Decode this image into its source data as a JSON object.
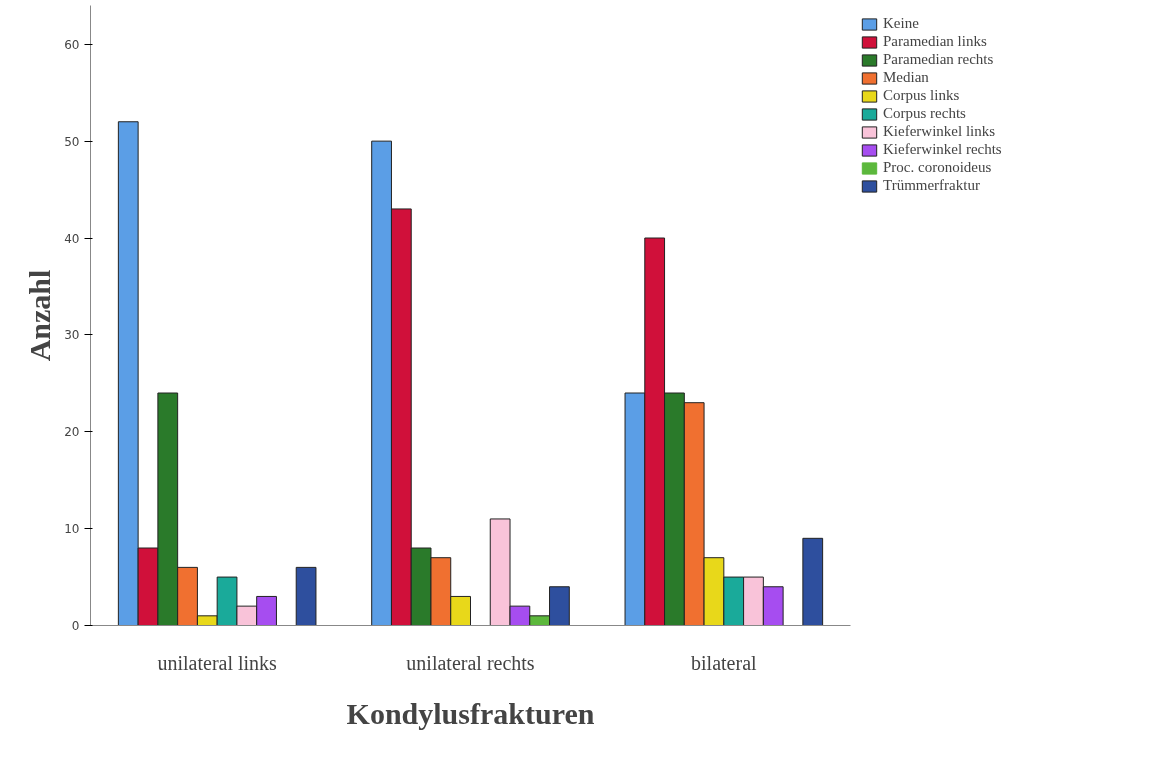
{
  "chart_data": {
    "type": "bar",
    "xlabel": "Kondylusfrakturen",
    "ylabel": "Anzahl",
    "categories": [
      "unilateral links",
      "unilateral rechts",
      "bilateral"
    ],
    "series": [
      {
        "name": "Keine",
        "color": "#5b9ee6",
        "values": [
          52,
          50,
          24
        ]
      },
      {
        "name": "Paramedian links",
        "color": "#d0103a",
        "values": [
          8,
          43,
          40
        ]
      },
      {
        "name": "Paramedian rechts",
        "color": "#2a7a2a",
        "values": [
          24,
          8,
          24
        ]
      },
      {
        "name": "Median",
        "color": "#f07030",
        "values": [
          6,
          7,
          23
        ]
      },
      {
        "name": "Corpus links",
        "color": "#e8d81a",
        "values": [
          1,
          3,
          7
        ]
      },
      {
        "name": "Corpus rechts",
        "color": "#1aaa9a",
        "values": [
          5,
          0,
          5
        ]
      },
      {
        "name": "Kieferwinkel links",
        "color": "#f9c3d9",
        "values": [
          2,
          11,
          5
        ]
      },
      {
        "name": "Kieferwinkel rechts",
        "color": "#a64df0",
        "values": [
          3,
          2,
          4
        ]
      },
      {
        "name": "Proc. coronoideus",
        "color": "#5cb83c",
        "values": [
          0,
          1,
          0
        ]
      },
      {
        "name": "Trümmerfraktur",
        "color": "#2e4f9e",
        "values": [
          6,
          4,
          9
        ]
      }
    ],
    "ylim": [
      0,
      64
    ],
    "yticks": [
      0,
      10,
      20,
      30,
      40,
      50,
      60
    ],
    "grid": false,
    "legend": "top right"
  }
}
